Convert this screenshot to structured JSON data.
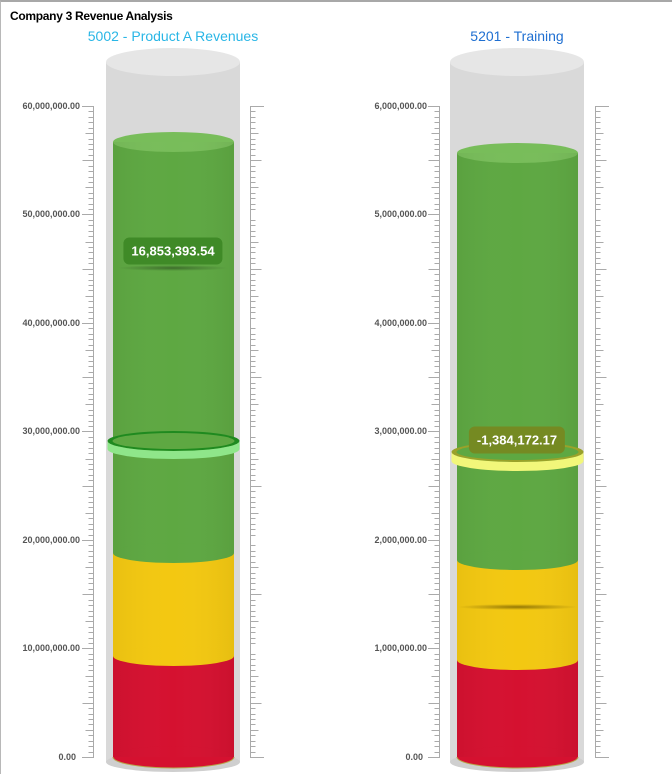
{
  "panel": {
    "title": "Company 3 Revenue Analysis"
  },
  "colors": {
    "red": "#d51130",
    "yellow": "#f3c811",
    "green": "#5ea842",
    "green_top": "#78bd5a",
    "tube": "#d9d9d9",
    "tube_top": "#e6e6e6"
  },
  "gauges": [
    {
      "title": "5002 - Product A Revenues",
      "title_color": "#29b6e6",
      "axis_labels": [
        "60,000,000.00",
        "50,000,000.00",
        "40,000,000.00",
        "30,000,000.00",
        "20,000,000.00",
        "10,000,000.00",
        "0.00"
      ],
      "tooltip": "16,853,393.54",
      "tooltip_color": "#3f8a27",
      "marker_color": "#8fe68a",
      "marker_dark": "#1f8a1f"
    },
    {
      "title": "5201 - Training",
      "title_color": "#1f6fd1",
      "axis_labels": [
        "6,000,000.00",
        "5,000,000.00",
        "4,000,000.00",
        "3,000,000.00",
        "2,000,000.00",
        "1,000,000.00",
        "0.00"
      ],
      "tooltip": "-1,384,172.17",
      "tooltip_color": "#758a22",
      "marker_color": "#f2f77a",
      "marker_dark": "#9aa22a"
    }
  ],
  "chart_data": [
    {
      "type": "cylinder-gauge",
      "title": "5002 - Product A Revenues",
      "ylim": [
        0,
        60000000
      ],
      "ticks": [
        0,
        10000000,
        20000000,
        30000000,
        40000000,
        50000000,
        60000000
      ],
      "bands": [
        {
          "color": "red",
          "from": 0,
          "to": 9300000
        },
        {
          "color": "yellow",
          "from": 9300000,
          "to": 18800000
        },
        {
          "color": "green",
          "from": 18800000,
          "to": 56700000
        }
      ],
      "fill_value": 56700000,
      "target_marker": 28800000,
      "tooltip_value": "16,853,393.54"
    },
    {
      "type": "cylinder-gauge",
      "title": "5201 - Training",
      "ylim": [
        0,
        6000000
      ],
      "ticks": [
        0,
        1000000,
        2000000,
        3000000,
        4000000,
        5000000,
        6000000
      ],
      "bands": [
        {
          "color": "red",
          "from": 0,
          "to": 900000
        },
        {
          "color": "yellow",
          "from": 900000,
          "to": 1820000
        },
        {
          "color": "green",
          "from": 1820000,
          "to": 5570000
        }
      ],
      "fill_value": 5570000,
      "target_marker": 2780000,
      "tooltip_value": "-1,384,172.17"
    }
  ]
}
